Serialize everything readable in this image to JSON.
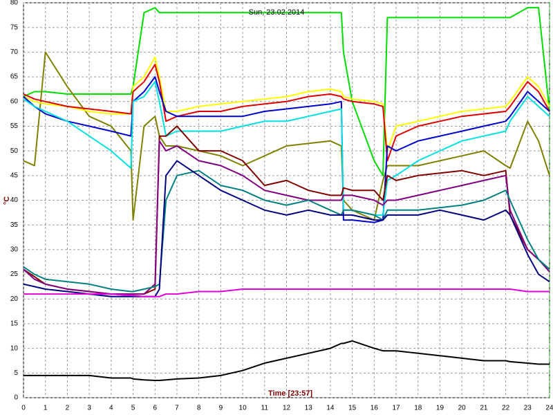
{
  "chart_data": {
    "type": "line",
    "title": "Sun, 23.02.2014",
    "x_label": "Time [23:57]",
    "y_label": "°C",
    "x": [
      0,
      0.5,
      1,
      2,
      3,
      4,
      4.9,
      5,
      5.5,
      6,
      6.2,
      6.5,
      7,
      8,
      9,
      10,
      11,
      12,
      13,
      14,
      14.5,
      14.6,
      15,
      16,
      16.4,
      16.6,
      17,
      18,
      19,
      20,
      21,
      22,
      22.2,
      23,
      23.5,
      24
    ],
    "xlim": [
      0,
      24
    ],
    "xticks": [
      0,
      1,
      2,
      3,
      4,
      5,
      6,
      7,
      8,
      9,
      10,
      11,
      12,
      13,
      14,
      15,
      16,
      17,
      18,
      19,
      20,
      21,
      22,
      23,
      24
    ],
    "ylim": [
      0,
      80
    ],
    "yticks": [
      0,
      5,
      10,
      15,
      20,
      25,
      30,
      35,
      40,
      45,
      50,
      55,
      60,
      65,
      70,
      75,
      80
    ],
    "grid": true,
    "series": [
      {
        "color": "#00dd00",
        "values": [
          61,
          62,
          62,
          61.5,
          61.5,
          61.5,
          61.5,
          63,
          78,
          79,
          78,
          78,
          78,
          78,
          78,
          78,
          78,
          78,
          78,
          78,
          78,
          70,
          60,
          48,
          45,
          77,
          77,
          77,
          77,
          77,
          77,
          77,
          77,
          79,
          79,
          58
        ]
      },
      {
        "color": "#808000",
        "values": [
          48,
          47,
          70,
          63,
          57,
          55,
          50,
          36,
          55,
          57,
          53,
          51,
          51,
          50,
          49,
          47,
          49,
          51,
          51.5,
          52,
          51,
          40,
          38,
          36,
          44,
          47,
          47,
          47,
          48,
          49,
          50,
          47,
          46.5,
          56,
          52,
          45
        ]
      },
      {
        "color": "#ffff00",
        "values": [
          61,
          60,
          59.5,
          59,
          58,
          57.5,
          57.5,
          63,
          65,
          69,
          65,
          58,
          58,
          59,
          59.5,
          60,
          60.5,
          61,
          62,
          62.5,
          62,
          61,
          60.5,
          60,
          59.5,
          50,
          55,
          56,
          57,
          58,
          58.5,
          59,
          60,
          65,
          63,
          59
        ]
      },
      {
        "color": "#dd0000",
        "values": [
          61.5,
          60.5,
          60,
          59,
          58.5,
          58,
          57.5,
          62,
          64,
          67.5,
          64,
          56,
          57,
          58,
          58,
          59,
          59.5,
          60,
          61,
          61.5,
          61,
          60.5,
          60,
          59.5,
          59,
          48,
          53,
          55,
          56,
          57,
          57.5,
          58,
          59,
          64,
          62,
          58
        ]
      },
      {
        "color": "#0000cc",
        "values": [
          61,
          59,
          57.5,
          56,
          55,
          54,
          53,
          60,
          62,
          65,
          62,
          58,
          57,
          57,
          57,
          57,
          58,
          58.5,
          59,
          59.5,
          60,
          36,
          36,
          35.5,
          36,
          51,
          50,
          52,
          53,
          54,
          55,
          56,
          57,
          62,
          60,
          58
        ]
      },
      {
        "color": "#00e0e0",
        "values": [
          60.5,
          59,
          58,
          56,
          53,
          50,
          46.5,
          60,
          61,
          64,
          60,
          53,
          54,
          54,
          54,
          55,
          56,
          56,
          57,
          58,
          58.5,
          38,
          38,
          37,
          37,
          44,
          45,
          48,
          50,
          52,
          53,
          54,
          56,
          61,
          59,
          57
        ]
      },
      {
        "color": "#800000",
        "values": [
          26,
          24.5,
          23,
          22,
          21.5,
          21,
          21,
          21,
          21,
          22,
          53,
          53,
          55,
          50,
          50,
          48,
          43,
          44,
          42,
          41,
          41,
          42.5,
          42,
          42,
          40,
          45,
          44,
          45,
          45.5,
          46,
          45,
          46,
          37,
          30,
          28,
          26
        ]
      },
      {
        "color": "#800080",
        "values": [
          26,
          24,
          23,
          22,
          21.5,
          21,
          21,
          21,
          21,
          23,
          52,
          50,
          51,
          48,
          47,
          45,
          42,
          41,
          40,
          40,
          40,
          41,
          41,
          40,
          39,
          40,
          40,
          41,
          42,
          43,
          44,
          45,
          38,
          30,
          28,
          25.5
        ]
      },
      {
        "color": "#008080",
        "values": [
          26.5,
          25,
          24,
          23.5,
          23,
          22,
          21.5,
          21.5,
          22,
          22.5,
          23,
          40,
          45,
          46,
          43,
          42,
          40,
          39,
          40,
          38,
          37,
          38,
          38,
          37,
          36,
          38,
          38,
          38,
          38.5,
          39,
          40,
          42,
          40,
          32,
          28,
          26
        ]
      },
      {
        "color": "#000080",
        "values": [
          23,
          22.5,
          22,
          21.5,
          21,
          20.5,
          20.5,
          20.5,
          20.5,
          20.5,
          22,
          45,
          48,
          45,
          42,
          40,
          38,
          37,
          38,
          37,
          37,
          37,
          37,
          36,
          36,
          37,
          37,
          37,
          38,
          37,
          36,
          38,
          37,
          29,
          25,
          23.5
        ]
      },
      {
        "color": "#e000e0",
        "values": [
          21,
          21,
          21,
          21,
          21,
          21,
          20.7,
          20.7,
          20.5,
          20.5,
          20.5,
          21,
          21,
          21.5,
          21.5,
          22,
          22,
          22,
          22,
          22,
          22,
          22,
          22,
          22,
          22,
          22,
          22,
          22,
          22,
          22,
          22,
          22,
          22,
          21.5,
          21.5,
          21.5
        ]
      },
      {
        "color": "#000000",
        "values": [
          4.5,
          4.5,
          4.5,
          4.5,
          4.5,
          4,
          4,
          3.8,
          3.6,
          3.5,
          3.5,
          3.6,
          3.8,
          4,
          4.5,
          5.5,
          7,
          8,
          9,
          10,
          11,
          11,
          11.5,
          10,
          9.5,
          9.5,
          9.5,
          9,
          8.5,
          8,
          7.5,
          7.5,
          7.3,
          7,
          6.8,
          6.8
        ]
      }
    ]
  }
}
